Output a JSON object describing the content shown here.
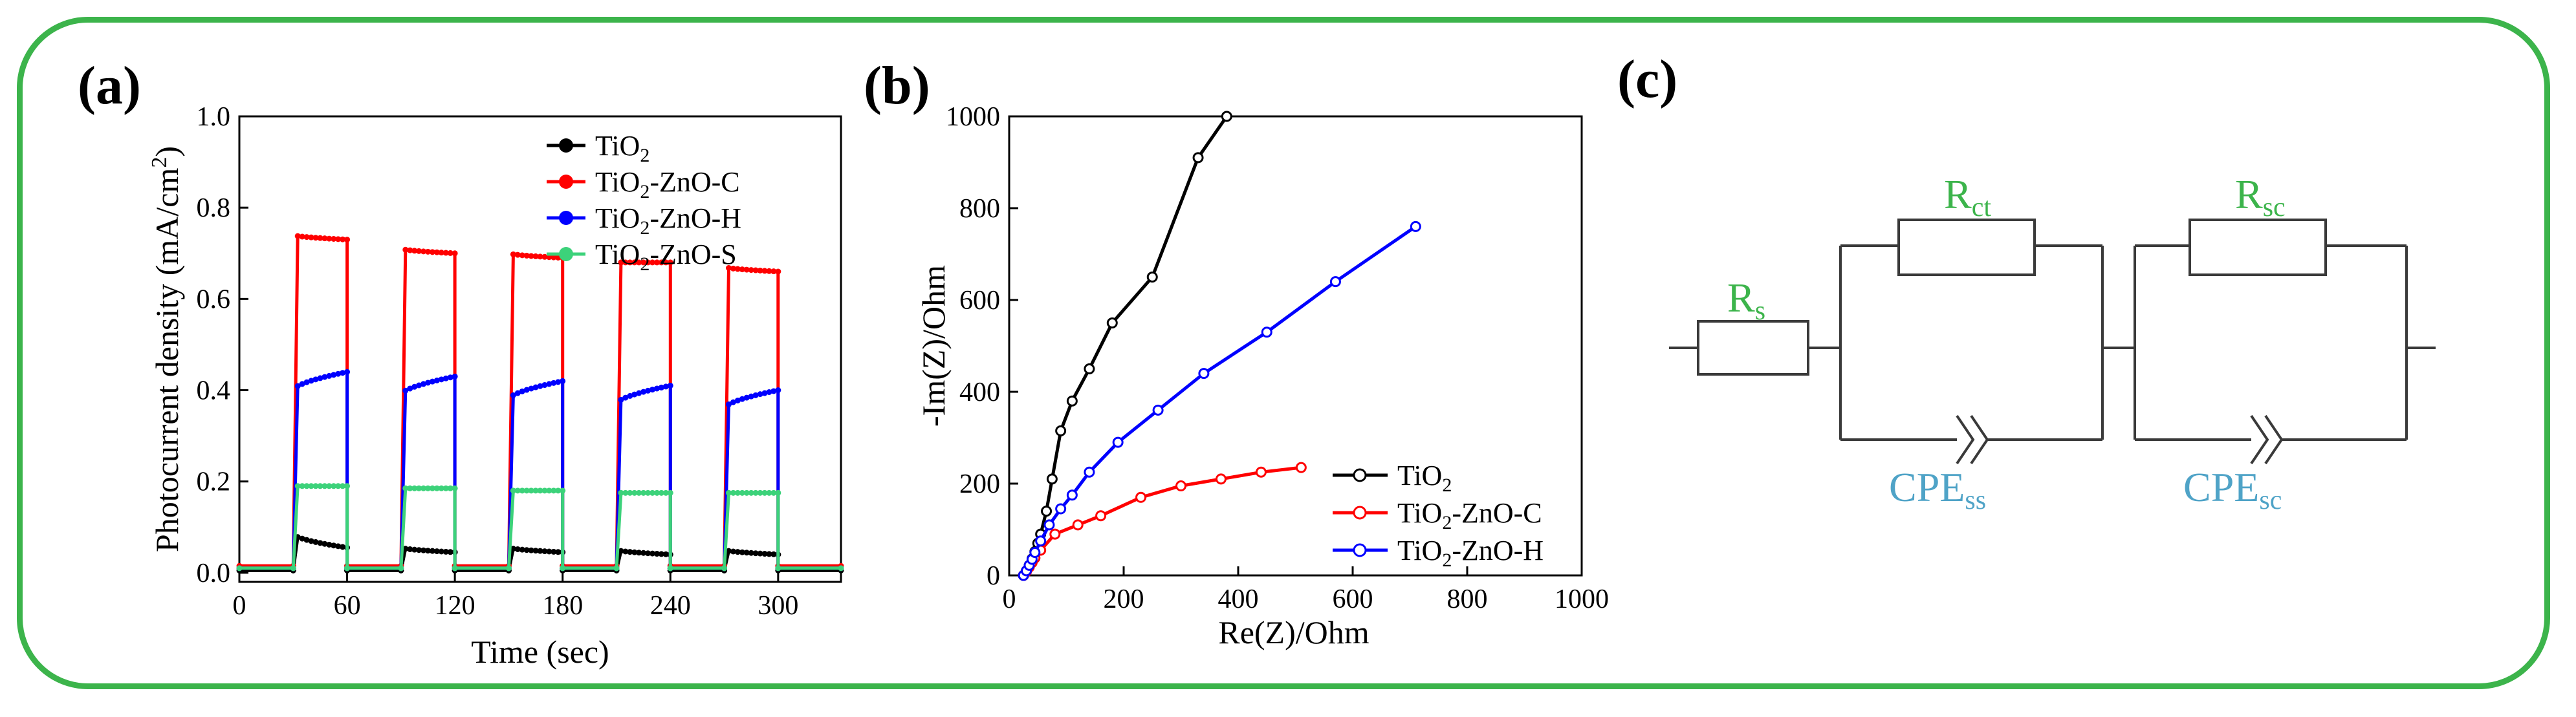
{
  "colors": {
    "frame": "#3cb44b",
    "TiO2": "#000000",
    "TiO2-ZnO-C": "#ff0000",
    "TiO2-ZnO-H": "#0000ff",
    "TiO2-ZnO-S": "#3cd27a",
    "circuit_green": "#3cb44b",
    "circuit_blue": "#4fa3c7"
  },
  "chart_data": [
    {
      "panel": "(a)",
      "type": "line",
      "title": "",
      "xlabel": "Time (sec)",
      "ylabel": "Photocurrent density (mA/cm2)",
      "xlim": [
        0,
        335
      ],
      "ylim": [
        -0.02,
        1.0
      ],
      "xticks": [
        0,
        60,
        120,
        180,
        240,
        300
      ],
      "yticks": [
        0.0,
        0.2,
        0.4,
        0.6,
        0.8,
        1.0
      ],
      "x_tick_labels": [
        "0",
        "60",
        "120",
        "180",
        "240",
        "300"
      ],
      "y_tick_labels": [
        "0.0",
        "0.2",
        "0.4",
        "0.6",
        "0.8",
        "1.0"
      ],
      "light_on_intervals": [
        [
          30,
          60
        ],
        [
          90,
          120
        ],
        [
          150,
          180
        ],
        [
          210,
          240
        ],
        [
          270,
          300
        ]
      ],
      "series": [
        {
          "name": "TiO2",
          "name_main": "TiO",
          "name_sub": "2",
          "name_rest": "",
          "dark": 0.005,
          "on_peaks": [
            [
              0.085,
              0.055
            ],
            [
              0.055,
              0.045
            ],
            [
              0.055,
              0.045
            ],
            [
              0.05,
              0.04
            ],
            [
              0.05,
              0.04
            ]
          ]
        },
        {
          "name": "TiO2-ZnO-C",
          "name_main": "TiO",
          "name_sub": "2",
          "name_rest": "-ZnO-C",
          "dark": 0.015,
          "on_peaks": [
            [
              0.74,
              0.73
            ],
            [
              0.71,
              0.7
            ],
            [
              0.7,
              0.69
            ],
            [
              0.68,
              0.68
            ],
            [
              0.67,
              0.66
            ]
          ]
        },
        {
          "name": "TiO2-ZnO-H",
          "name_main": "TiO",
          "name_sub": "2",
          "name_rest": "-ZnO-H",
          "dark": 0.01,
          "on_peaks": [
            [
              0.4,
              0.44
            ],
            [
              0.39,
              0.43
            ],
            [
              0.38,
              0.42
            ],
            [
              0.37,
              0.41
            ],
            [
              0.36,
              0.4
            ]
          ]
        },
        {
          "name": "TiO2-ZnO-S",
          "name_main": "TiO",
          "name_sub": "2",
          "name_rest": "-ZnO-S",
          "dark": 0.01,
          "on_peaks": [
            [
              0.19,
              0.19
            ],
            [
              0.185,
              0.185
            ],
            [
              0.18,
              0.18
            ],
            [
              0.175,
              0.175
            ],
            [
              0.175,
              0.175
            ]
          ]
        }
      ]
    },
    {
      "panel": "(b)",
      "type": "scatter",
      "title": "",
      "xlabel": "Re(Z)/Ohm",
      "ylabel": "-Im(Z)/Ohm",
      "xlim": [
        0,
        1000
      ],
      "ylim": [
        0,
        1000
      ],
      "xticks": [
        0,
        200,
        400,
        600,
        800,
        1000
      ],
      "yticks": [
        0,
        200,
        400,
        600,
        800,
        1000
      ],
      "x_tick_labels": [
        "0",
        "200",
        "400",
        "600",
        "800",
        "1000"
      ],
      "y_tick_labels": [
        "0",
        "200",
        "400",
        "600",
        "800",
        "1000"
      ],
      "series": [
        {
          "name": "TiO2",
          "name_main": "TiO",
          "name_sub": "2",
          "name_rest": "",
          "x": [
            25,
            30,
            35,
            40,
            45,
            50,
            55,
            65,
            75,
            90,
            110,
            140,
            180,
            250,
            330,
            380
          ],
          "y": [
            0,
            10,
            22,
            36,
            52,
            70,
            90,
            140,
            210,
            315,
            380,
            450,
            550,
            650,
            910,
            1000
          ]
        },
        {
          "name": "TiO2-ZnO-C",
          "name_main": "TiO",
          "name_sub": "2",
          "name_rest": "-ZnO-C",
          "x": [
            25,
            30,
            35,
            40,
            45,
            55,
            80,
            120,
            160,
            230,
            300,
            370,
            440,
            510
          ],
          "y": [
            0,
            8,
            18,
            28,
            38,
            55,
            90,
            110,
            130,
            170,
            195,
            210,
            225,
            235
          ]
        },
        {
          "name": "TiO2-ZnO-H",
          "name_main": "TiO",
          "name_sub": "2",
          "name_rest": "-ZnO-H",
          "x": [
            25,
            30,
            35,
            40,
            45,
            55,
            70,
            90,
            110,
            140,
            190,
            260,
            340,
            450,
            570,
            710
          ],
          "y": [
            0,
            10,
            22,
            35,
            50,
            75,
            110,
            145,
            175,
            225,
            290,
            360,
            440,
            530,
            640,
            760
          ]
        }
      ]
    }
  ],
  "circuit": {
    "panel": "(c)",
    "rs_main": "R",
    "rs_sub": "s",
    "rct_main": "R",
    "rct_sub": "ct",
    "rsc_main": "R",
    "rsc_sub": "sc",
    "cpe_ss_main": "CPE",
    "cpe_ss_sub": "ss",
    "cpe_sc_main": "CPE",
    "cpe_sc_sub": "sc"
  }
}
